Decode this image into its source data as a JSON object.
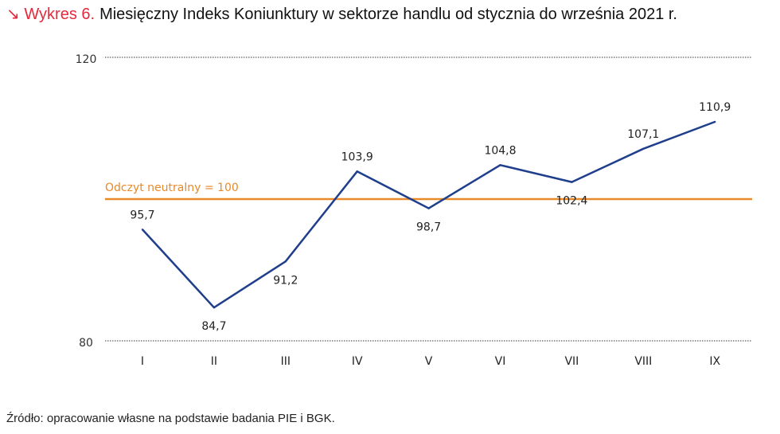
{
  "title": {
    "icon": "arrow-down-right-icon",
    "arrow": "↘",
    "number": "Wykres 6.",
    "text": "Miesięczny Indeks Koniunktury w sektorze handlu od stycznia do września 2021 r."
  },
  "source": "Źródło: opracowanie własne na podstawie badania PIE i BGK.",
  "colors": {
    "accent": "#e5293b",
    "line": "#1f3f8c",
    "neutral": "#e8892a",
    "grid": "#333333"
  },
  "chart_data": {
    "type": "line",
    "title": "Miesięczny Indeks Koniunktury w sektorze handlu od stycznia do września 2021 r.",
    "xlabel": "",
    "ylabel": "",
    "ylim": [
      80,
      120
    ],
    "yticks": [
      "80",
      "120"
    ],
    "categories": [
      "I",
      "II",
      "III",
      "IV",
      "V",
      "VI",
      "VII",
      "VIII",
      "IX"
    ],
    "series": [
      {
        "name": "Indeks Koniunktury",
        "values": [
          95.7,
          84.7,
          91.2,
          103.9,
          98.7,
          104.8,
          102.4,
          107.1,
          110.9
        ],
        "labels": [
          "95,7",
          "84,7",
          "91,2",
          "103,9",
          "98,7",
          "104,8",
          "102,4",
          "107,1",
          "110,9"
        ],
        "label_positions": [
          "above",
          "below",
          "below",
          "above",
          "below",
          "above",
          "below",
          "above",
          "above"
        ]
      }
    ],
    "reference_line": {
      "value": 100,
      "label": "Odczyt neutralny = 100"
    },
    "grid": "dotted lines at 80 and 120"
  }
}
